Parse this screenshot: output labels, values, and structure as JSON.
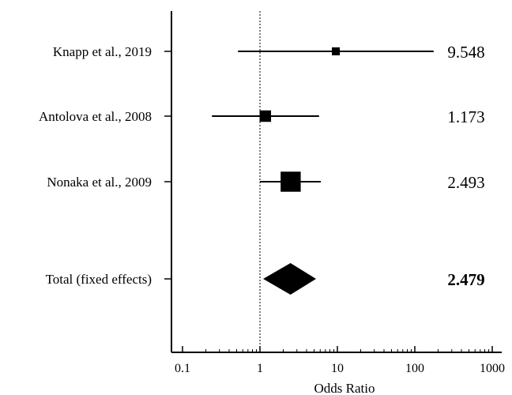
{
  "chart_data": {
    "type": "forest",
    "xlabel": "Odds Ratio",
    "xscale": "log",
    "xlim": [
      0.1,
      1000
    ],
    "xticks": [
      0.1,
      1,
      10,
      100,
      1000
    ],
    "xtick_labels": [
      "0.1",
      "1",
      "10",
      "100",
      "1000"
    ],
    "reference_line": 1,
    "studies": [
      {
        "label": "Knapp et al., 2019",
        "or": 9.548,
        "or_label": "9.548",
        "ci": [
          0.52,
          175
        ],
        "weight": 0.08
      },
      {
        "label": "Antolova et al., 2008",
        "or": 1.173,
        "or_label": "1.173",
        "ci": [
          0.24,
          5.8
        ],
        "weight": 0.25
      },
      {
        "label": "Nonaka et al., 2009",
        "or": 2.493,
        "or_label": "2.493",
        "ci": [
          1.0,
          6.1
        ],
        "weight": 0.67
      }
    ],
    "pooled": {
      "label": "Total (fixed effects)",
      "or": 2.479,
      "or_label": "2.479",
      "ci": [
        1.1,
        5.3
      ]
    }
  }
}
